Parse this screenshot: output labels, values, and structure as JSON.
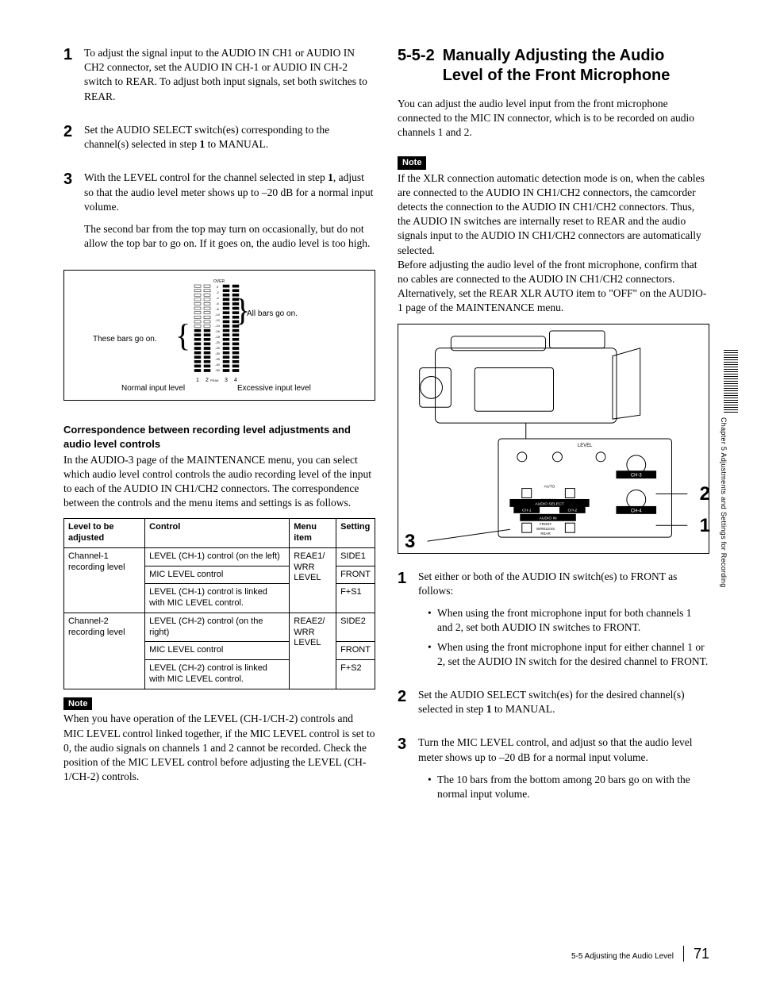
{
  "left": {
    "steps": [
      {
        "num": "1",
        "paras": [
          "To adjust the signal input to the AUDIO IN CH1 or AUDIO IN CH2 connector, set the AUDIO IN CH-1 or AUDIO IN CH-2 switch to REAR. To adjust both input signals, set both switches to REAR."
        ]
      },
      {
        "num": "2",
        "paras": [
          "Set the AUDIO SELECT switch(es) corresponding to the channel(s) selected in step 1 to MANUAL."
        ],
        "bold_at": "1"
      },
      {
        "num": "3",
        "paras": [
          "With the LEVEL control for the channel selected in step 1, adjust so that the audio level meter shows up to –20 dB for a normal input volume.",
          "The second bar from the top may turn on occasionally, but do not allow the top bar to go on. If it goes on, the audio level is too high."
        ],
        "bold_at": "1"
      }
    ],
    "diagram": {
      "left_label": "These bars go on.",
      "right_label": "All bars go on.",
      "bottom_left": "Normal input level",
      "bottom_right": "Excessive input level",
      "scale_top": "OVER",
      "scale_marks": [
        "0",
        "-2",
        "-4",
        "-6",
        "-8",
        "-10",
        "-12",
        "-14",
        "-16",
        "-18",
        "-20",
        "-25",
        "-30",
        "-35",
        "-40",
        "-50"
      ],
      "channels": [
        "1",
        "2",
        "3",
        "4"
      ],
      "peak_label": "PEAK"
    },
    "sub_heading": "Correspondence between recording level adjustments and audio level controls",
    "sub_para": "In the AUDIO-3 page of the MAINTENANCE menu, you can select which audio level control controls the audio recording level of the input to each of the AUDIO IN CH1/CH2 connectors. The correspondence between the controls and the menu items and settings is as follows.",
    "table": {
      "headers": [
        "Level to be adjusted",
        "Control",
        "Menu item",
        "Setting"
      ],
      "rows": [
        {
          "level": "Channel-1 recording level",
          "controls": [
            {
              "c": "LEVEL (CH-1) control (on the left)",
              "s": "SIDE1"
            },
            {
              "c": "MIC LEVEL control",
              "s": "FRONT"
            },
            {
              "c": "LEVEL (CH-1) control is linked with MIC LEVEL control.",
              "s": "F+S1"
            }
          ],
          "menu": "REAE1/\nWRR\nLEVEL"
        },
        {
          "level": "Channel-2 recording level",
          "controls": [
            {
              "c": "LEVEL (CH-2) control (on the right)",
              "s": "SIDE2"
            },
            {
              "c": "MIC LEVEL control",
              "s": "FRONT"
            },
            {
              "c": "LEVEL (CH-2) control is linked with MIC LEVEL control.",
              "s": "F+S2"
            }
          ],
          "menu": "REAE2/\nWRR\nLEVEL"
        }
      ]
    },
    "note_label": "Note",
    "note_text": "When you have operation of the LEVEL (CH-1/CH-2) controls and MIC LEVEL control linked together, if the MIC LEVEL control is set to 0, the audio signals on channels 1 and 2 cannot be recorded. Check the position of the MIC LEVEL control before adjusting the LEVEL (CH-1/CH-2) controls."
  },
  "right": {
    "heading_num": "5-5-2",
    "heading_text": "Manually Adjusting the Audio Level of the Front Microphone",
    "intro": "You can adjust the audio level input from the front microphone connected to the MIC IN connector, which is to be recorded on audio channels 1 and 2.",
    "note_label": "Note",
    "note_paras": [
      "If the XLR connection automatic detection mode is on, when the cables are connected to the AUDIO IN CH1/CH2 connectors, the camcorder detects the connection to the AUDIO IN CH1/CH2 connectors. Thus, the AUDIO IN switches are internally reset to REAR and the audio signals input to the AUDIO IN CH1/CH2 connectors are automatically selected.",
      "Before adjusting the audio level of the front microphone, confirm that no cables are connected to the AUDIO IN CH1/CH2 connectors. Alternatively, set the REAR XLR AUTO item to \"OFF\" on the AUDIO-1 page of the MAINTENANCE menu."
    ],
    "illus_nums": {
      "n1": "1",
      "n2": "2",
      "n3": "3"
    },
    "panel_labels": {
      "level": "LEVEL",
      "ch3": "CH-3",
      "ch4": "CH-4",
      "auto": "AUTO",
      "manual": "MANUAL",
      "audio_select": "AUDIO SELECT",
      "ch1": "CH-1",
      "ch2": "CH-2",
      "audio_in": "AUDIO IN",
      "front": "FRONT",
      "rear": "REAR",
      "wireless": "WIRELESS"
    },
    "steps": [
      {
        "num": "1",
        "paras": [
          "Set either or both of the AUDIO IN switch(es) to FRONT as follows:"
        ],
        "bullets": [
          "When using the front microphone input for both channels 1 and 2, set both AUDIO IN switches to FRONT.",
          "When using the front microphone input for either channel 1 or 2, set the AUDIO IN switch for the desired channel to FRONT."
        ]
      },
      {
        "num": "2",
        "paras": [
          "Set the AUDIO SELECT switch(es) for the desired channel(s) selected in step 1 to MANUAL."
        ],
        "bold_at": "1"
      },
      {
        "num": "3",
        "paras": [
          "Turn the MIC LEVEL control, and adjust so that the audio level meter shows up to –20 dB for a normal input volume."
        ],
        "bullets": [
          "The 10 bars from the bottom among 20 bars go on with the normal input volume."
        ]
      }
    ]
  },
  "side": {
    "chapter": "Chapter 5   Adjustments and Settings for Recording"
  },
  "footer": {
    "section": "5-5 Adjusting the Audio Level",
    "page": "71"
  }
}
